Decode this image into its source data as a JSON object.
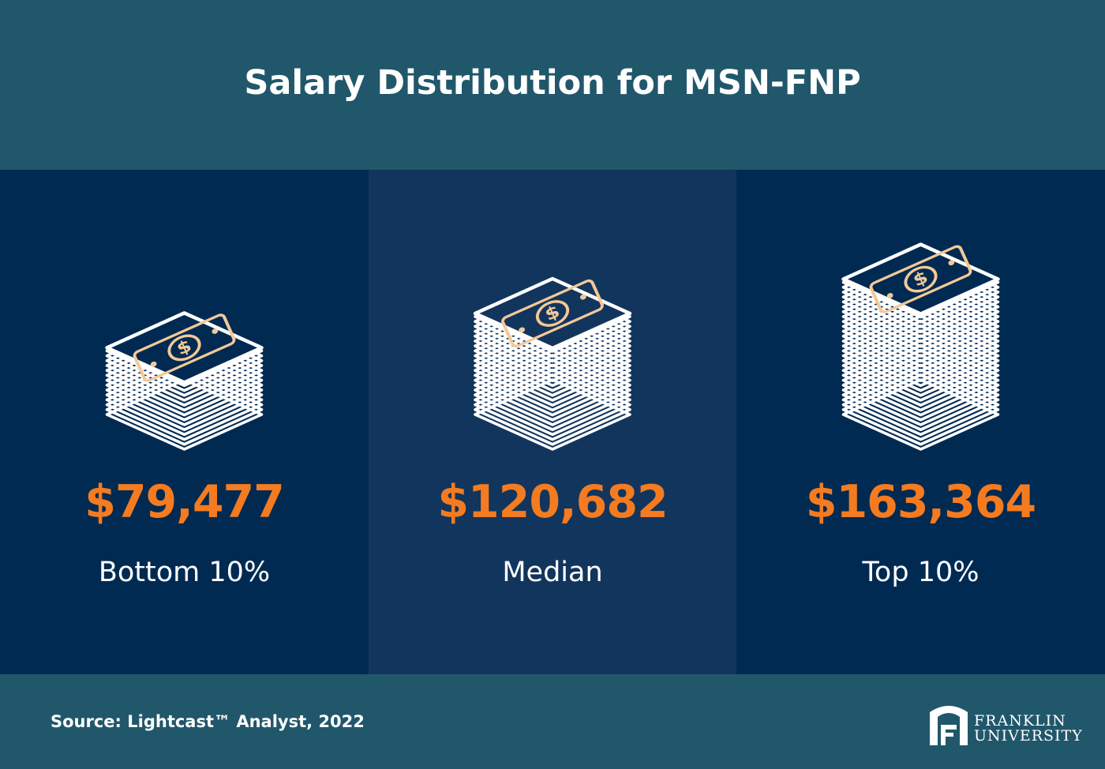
{
  "title": "Salary Distribution for MSN-FNP",
  "chart_data": {
    "type": "bar",
    "title": "Salary Distribution for MSN-FNP",
    "categories": [
      "Bottom 10%",
      "Median",
      "Top 10%"
    ],
    "values": [
      79477,
      120682,
      163364
    ],
    "value_labels": [
      "$79,477",
      "$120,682",
      "$163,364"
    ]
  },
  "source": "Source: Lightcast™ Analyst, 2022",
  "logo": {
    "line1": "FRANKLIN",
    "line2": "UNIVERSITY"
  },
  "colors": {
    "header_bg": "#21576b",
    "panel_dark": "#012a52",
    "panel_mid": "#12355d",
    "value_orange": "#f47b20",
    "bill_tan": "#f3c998"
  },
  "icons": [
    "money-stack-icon",
    "franklin-logo-icon"
  ]
}
